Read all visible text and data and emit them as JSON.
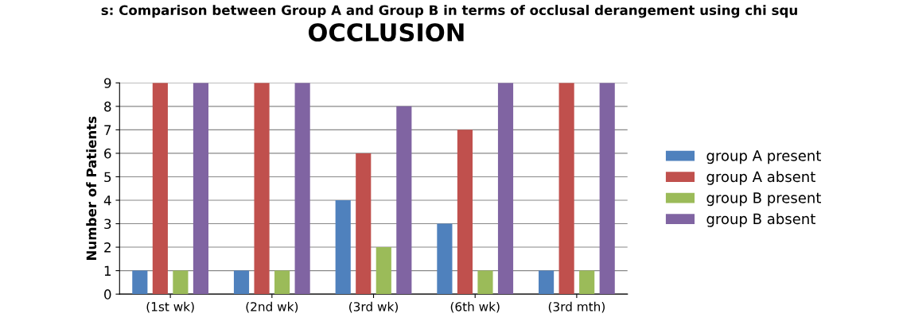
{
  "chart_data": {
    "type": "bar",
    "title": "OCCLUSION",
    "ylabel": "Number of Patients",
    "annotations": [
      "s: Comparison between Group A and Group B in terms of occlusal derangement using chi squ"
    ],
    "categories": [
      "(1st wk)",
      "(2nd wk)",
      "(3rd wk)",
      "(6th wk)",
      "(3rd mth)"
    ],
    "series": [
      {
        "name": "group A present",
        "color": "#4f81bd",
        "values": [
          1,
          1,
          4,
          3,
          1
        ]
      },
      {
        "name": "group A absent",
        "color": "#c0504d",
        "values": [
          9,
          9,
          6,
          7,
          9
        ]
      },
      {
        "name": "group B present",
        "color": "#9bbb59",
        "values": [
          1,
          1,
          2,
          1,
          1
        ]
      },
      {
        "name": "group B absent",
        "color": "#8064a2",
        "values": [
          9,
          9,
          8,
          9,
          9
        ]
      }
    ],
    "ylim": [
      0,
      9
    ],
    "yticks": [
      0,
      1,
      2,
      3,
      4,
      5,
      6,
      7,
      8,
      9
    ],
    "grid": "y",
    "legend": "right"
  }
}
